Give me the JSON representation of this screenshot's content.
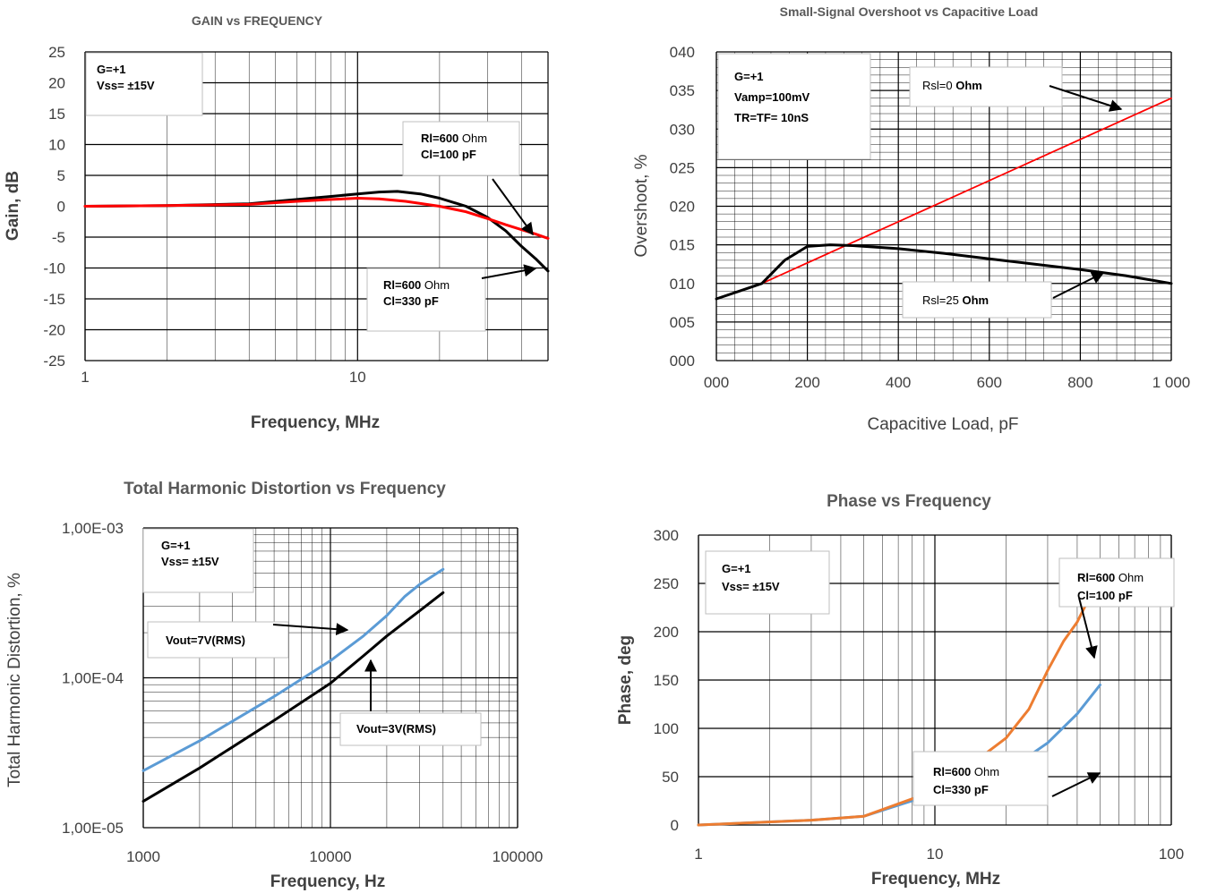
{
  "colors": {
    "black_series": "#000000",
    "red_series": "#ff0000",
    "blue_series": "#5b9bd5",
    "orange_series": "#ed7d31",
    "grid": "#000000",
    "text": "#404040"
  },
  "chart_data": [
    {
      "type": "line",
      "title": "GAIN vs FREQUENCY",
      "xlabel": "Frequency, MHz",
      "ylabel": "Gain, dB",
      "x_scale": "log",
      "xlim": [
        1,
        50
      ],
      "ylim": [
        -25,
        25
      ],
      "x_ticks": [
        1,
        10
      ],
      "x_tick_labels": [
        "1",
        "10"
      ],
      "y_ticks": [
        25,
        20,
        15,
        10,
        5,
        0,
        -5,
        -10,
        -15,
        -20,
        -25
      ],
      "y_tick_labels": [
        "25",
        "20",
        "15",
        "10",
        "5",
        "0",
        "-5",
        "-10",
        "-15",
        "-20",
        "-25"
      ],
      "grid": true,
      "series": [
        {
          "color": "#000000",
          "x": [
            1,
            2,
            4,
            6,
            8,
            10,
            12,
            14,
            17,
            20,
            25,
            30,
            35,
            40,
            45,
            50
          ],
          "y": [
            0,
            0.1,
            0.4,
            1.1,
            1.6,
            2.0,
            2.3,
            2.4,
            2.0,
            1.3,
            0,
            -1.8,
            -4.0,
            -6.5,
            -8.5,
            -10.5
          ]
        },
        {
          "color": "#ff0000",
          "x": [
            1,
            2,
            4,
            6,
            8,
            10,
            12,
            15,
            20,
            25,
            30,
            35,
            40,
            45,
            50
          ],
          "y": [
            0,
            0.1,
            0.3,
            0.8,
            1.1,
            1.3,
            1.2,
            0.8,
            0,
            -0.9,
            -2.0,
            -3.0,
            -3.8,
            -4.5,
            -5.2
          ]
        }
      ],
      "annotations": [
        {
          "lines": [
            [
              {
                "t": "G=+1",
                "b": true
              }
            ],
            [
              {
                "t": "Vss= ±15V",
                "b": true
              }
            ]
          ]
        },
        {
          "lines": [
            [
              {
                "t": "Rl=600",
                "b": true
              },
              {
                "t": " Ohm",
                "b": false
              }
            ],
            [
              {
                "t": "Cl=100 pF",
                "b": true
              }
            ]
          ]
        },
        {
          "lines": [
            [
              {
                "t": "Rl=600",
                "b": true
              },
              {
                "t": " Ohm",
                "b": false
              }
            ],
            [
              {
                "t": "Cl=330 pF",
                "b": true
              }
            ]
          ]
        }
      ]
    },
    {
      "type": "line",
      "title": "Small-Signal  Overshoot vs Capacitive Load",
      "xlabel": "Capacitive Load, pF",
      "ylabel": "Overshoot, %",
      "x_scale": "linear",
      "xlim": [
        0,
        1000
      ],
      "ylim": [
        0,
        40
      ],
      "x_ticks": [
        0,
        200,
        400,
        600,
        800,
        1000
      ],
      "x_tick_labels": [
        "000",
        "200",
        "400",
        "600",
        "800",
        "1 000"
      ],
      "y_ticks": [
        40,
        35,
        30,
        25,
        20,
        15,
        10,
        5,
        0
      ],
      "y_tick_labels": [
        "040",
        "035",
        "030",
        "025",
        "020",
        "015",
        "010",
        "005",
        "000"
      ],
      "grid": true,
      "series": [
        {
          "color": "#ff0000",
          "x": [
            100,
            1000
          ],
          "y": [
            10,
            34
          ]
        },
        {
          "color": "#000000",
          "x": [
            0,
            50,
            100,
            150,
            200,
            250,
            300,
            400,
            500,
            600,
            700,
            800,
            900,
            1000
          ],
          "y": [
            8,
            9,
            10,
            13,
            14.8,
            15,
            14.9,
            14.5,
            13.9,
            13.2,
            12.5,
            11.8,
            11,
            10
          ]
        }
      ],
      "annotations": [
        {
          "lines": [
            [
              {
                "t": "G=+1",
                "b": true
              }
            ],
            [
              {
                "t": "Vamp=100mV",
                "b": true
              }
            ],
            [
              {
                "t": "TR=TF= 10nS",
                "b": true
              }
            ]
          ]
        },
        {
          "lines": [
            [
              {
                "t": "Rsl=0 ",
                "b": false
              },
              {
                "t": "Ohm",
                "b": true
              }
            ]
          ]
        },
        {
          "lines": [
            [
              {
                "t": "Rsl=25 ",
                "b": false
              },
              {
                "t": "Ohm",
                "b": true
              }
            ]
          ]
        }
      ]
    },
    {
      "type": "line",
      "title": "Total Harmonic Distortion vs Frequency",
      "xlabel": "Frequency, Hz",
      "ylabel": "Total Harmonic Distortion, %",
      "x_scale": "log",
      "y_scale": "log",
      "xlim": [
        1000,
        100000
      ],
      "ylim": [
        1e-05,
        0.001
      ],
      "x_ticks": [
        1000,
        10000,
        100000
      ],
      "x_tick_labels": [
        "1000",
        "10000",
        "100000"
      ],
      "y_ticks": [
        0.001,
        0.0001,
        1e-05
      ],
      "y_tick_labels": [
        "1,00E-03",
        "1,00E-04",
        "1,00E-05"
      ],
      "grid": true,
      "series": [
        {
          "color": "#5b9bd5",
          "x": [
            1000,
            2000,
            5000,
            10000,
            15000,
            20000,
            25000,
            30000,
            40000
          ],
          "y": [
            2.4e-05,
            3.8e-05,
            7.5e-05,
            0.00013,
            0.00019,
            0.00026,
            0.00035,
            0.00042,
            0.00053
          ]
        },
        {
          "color": "#000000",
          "x": [
            1000,
            2000,
            5000,
            10000,
            15000,
            20000,
            30000,
            40000
          ],
          "y": [
            1.5e-05,
            2.5e-05,
            5.2e-05,
            9.2e-05,
            0.00014,
            0.00019,
            0.00028,
            0.00037
          ]
        }
      ],
      "annotations": [
        {
          "lines": [
            [
              {
                "t": "G=+1",
                "b": true
              }
            ],
            [
              {
                "t": "Vss= ±15V",
                "b": true
              }
            ]
          ]
        },
        {
          "lines": [
            [
              {
                "t": "Vout=7V(RMS)",
                "b": true
              }
            ]
          ]
        },
        {
          "lines": [
            [
              {
                "t": "Vout=3V(RMS)",
                "b": true
              }
            ]
          ]
        }
      ]
    },
    {
      "type": "line",
      "title": "Phase vs Frequency",
      "xlabel": "Frequency, MHz",
      "ylabel": "Phase, deg",
      "x_scale": "log",
      "xlim": [
        1,
        100
      ],
      "ylim": [
        300,
        0
      ],
      "x_ticks": [
        1,
        10,
        100
      ],
      "x_tick_labels": [
        "1",
        "10",
        "100"
      ],
      "y_ticks": [
        0,
        50,
        100,
        150,
        200,
        250,
        300
      ],
      "y_tick_labels": [
        "0",
        "50",
        "100",
        "150",
        "200",
        "250",
        "300"
      ],
      "grid": true,
      "series": [
        {
          "color": "#5b9bd5",
          "x": [
            1,
            3,
            5,
            8,
            10,
            15,
            20,
            30,
            40,
            50
          ],
          "y": [
            0,
            5,
            9,
            25,
            30,
            40,
            55,
            85,
            115,
            145
          ]
        },
        {
          "color": "#ed7d31",
          "x": [
            1,
            3,
            5,
            8,
            10,
            13,
            16,
            20,
            25,
            30,
            35,
            40,
            45,
            50
          ],
          "y": [
            0,
            5,
            9,
            27,
            35,
            50,
            72,
            90,
            120,
            160,
            190,
            210,
            235,
            250
          ]
        }
      ],
      "annotations": [
        {
          "lines": [
            [
              {
                "t": "G=+1",
                "b": true
              }
            ],
            [
              {
                "t": "Vss= ±15V",
                "b": true
              }
            ]
          ]
        },
        {
          "lines": [
            [
              {
                "t": "Rl=600",
                "b": true
              },
              {
                "t": " Ohm",
                "b": false
              }
            ],
            [
              {
                "t": "Cl=100 pF",
                "b": true
              }
            ]
          ]
        },
        {
          "lines": [
            [
              {
                "t": "Rl=600",
                "b": true
              },
              {
                "t": " Ohm",
                "b": false
              }
            ],
            [
              {
                "t": "Cl=330 pF",
                "b": true
              }
            ]
          ]
        }
      ]
    }
  ]
}
